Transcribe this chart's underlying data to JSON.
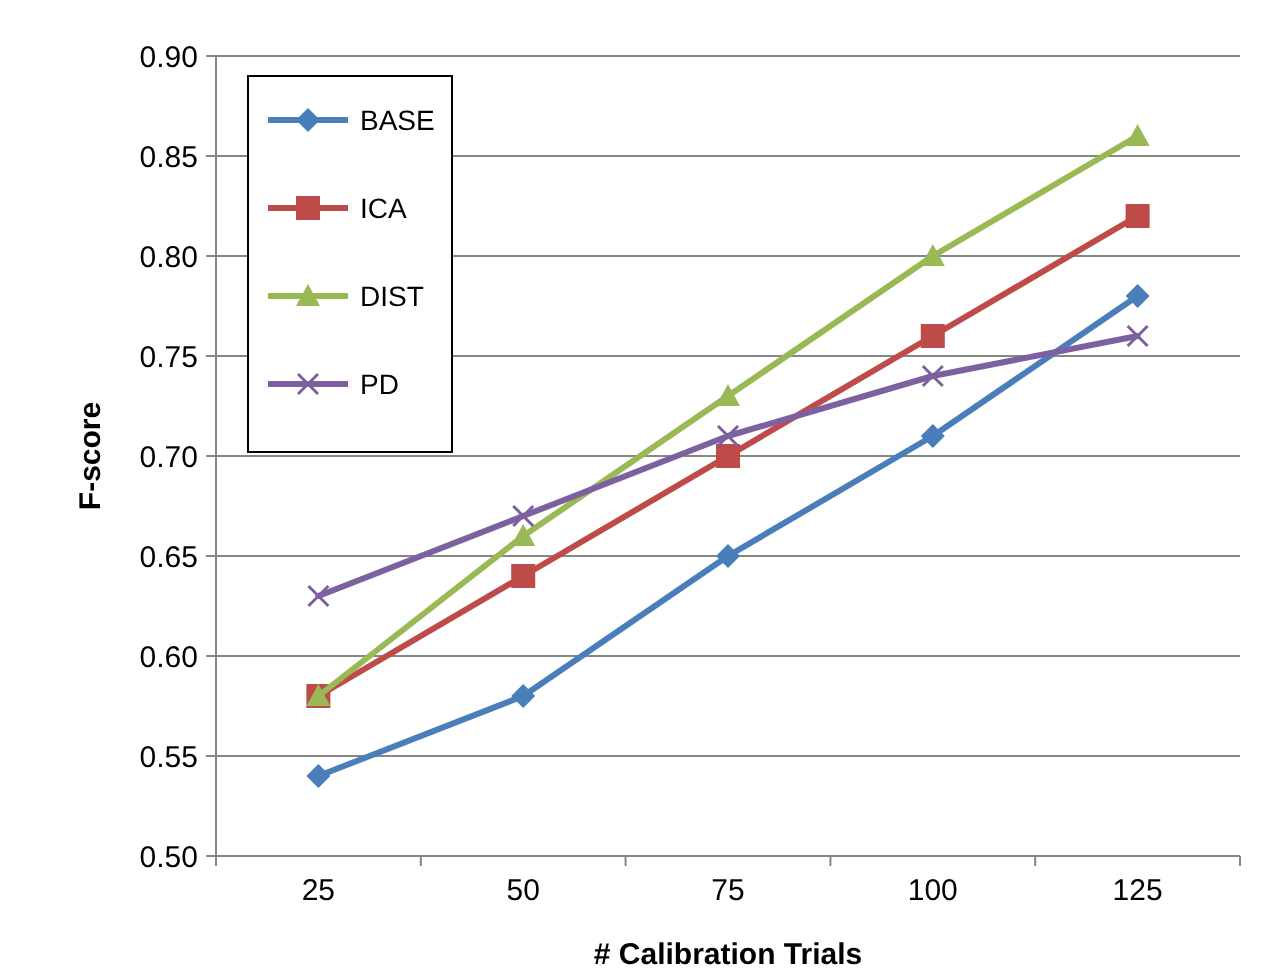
{
  "chart_data": {
    "type": "line",
    "xlabel": "# Calibration Trials",
    "ylabel": "F-score",
    "categories": [
      "25",
      "50",
      "75",
      "100",
      "125"
    ],
    "series": [
      {
        "name": "BASE",
        "color": "#4a7ebb",
        "marker": "diamond",
        "values": [
          0.54,
          0.58,
          0.65,
          0.71,
          0.78
        ]
      },
      {
        "name": "ICA",
        "color": "#be4b48",
        "marker": "square",
        "values": [
          0.58,
          0.64,
          0.7,
          0.76,
          0.82
        ]
      },
      {
        "name": "DIST",
        "color": "#98b954",
        "marker": "triangle",
        "values": [
          0.58,
          0.66,
          0.73,
          0.8,
          0.86
        ]
      },
      {
        "name": "PD",
        "color": "#7d60a0",
        "marker": "cross",
        "values": [
          0.63,
          0.67,
          0.71,
          0.74,
          0.76
        ]
      }
    ],
    "ylim": [
      0.5,
      0.9
    ],
    "yticks": [
      {
        "value": 0.5,
        "label": "0.50"
      },
      {
        "value": 0.55,
        "label": "0.55"
      },
      {
        "value": 0.6,
        "label": "0.60"
      },
      {
        "value": 0.65,
        "label": "0.65"
      },
      {
        "value": 0.7,
        "label": "0.70"
      },
      {
        "value": 0.75,
        "label": "0.75"
      },
      {
        "value": 0.8,
        "label": "0.80"
      },
      {
        "value": 0.85,
        "label": "0.85"
      },
      {
        "value": 0.9,
        "label": "0.90"
      }
    ],
    "grid": "y",
    "legend": "top left",
    "line_style": "solid"
  }
}
